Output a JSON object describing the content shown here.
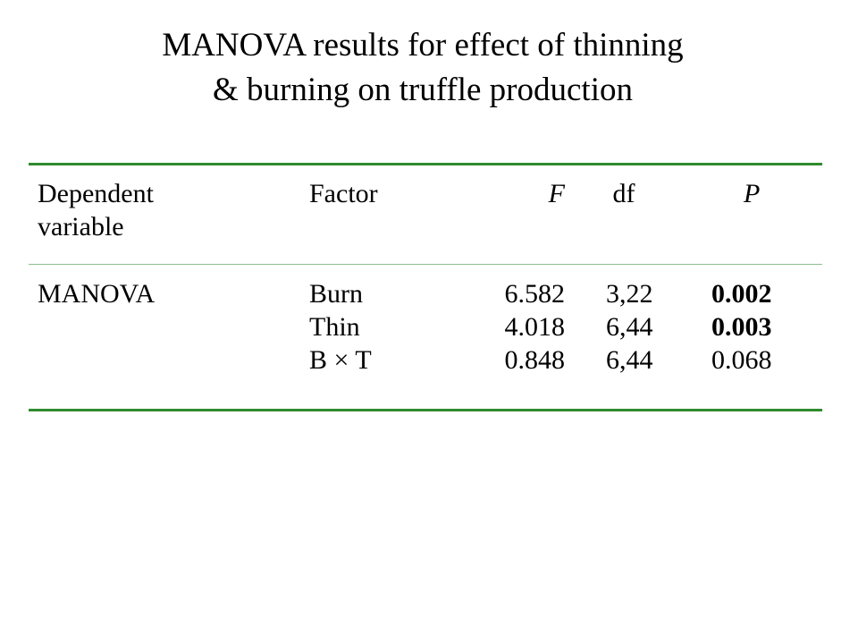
{
  "title": {
    "line1": "MANOVA results for effect of thinning",
    "line2": "& burning on truffle production"
  },
  "table": {
    "headers": {
      "dependent_line1": "Dependent",
      "dependent_line2": "variable",
      "factor": "Factor",
      "f": "F",
      "df": "df",
      "p": "P"
    },
    "rows": [
      {
        "dependent": "MANOVA",
        "factor": "Burn",
        "f": "6.582",
        "df": "3,22",
        "p": "0.002",
        "p_bold": true
      },
      {
        "dependent": "",
        "factor": "Thin",
        "f": "4.018",
        "df": "6,44",
        "p": "0.003",
        "p_bold": true
      },
      {
        "dependent": "",
        "factor": "B × T",
        "f": "0.848",
        "df": "6,44",
        "p": "0.068",
        "p_bold": false
      }
    ]
  },
  "colors": {
    "rule_strong": "#2e8b2e",
    "rule_light": "#8cc08c"
  }
}
